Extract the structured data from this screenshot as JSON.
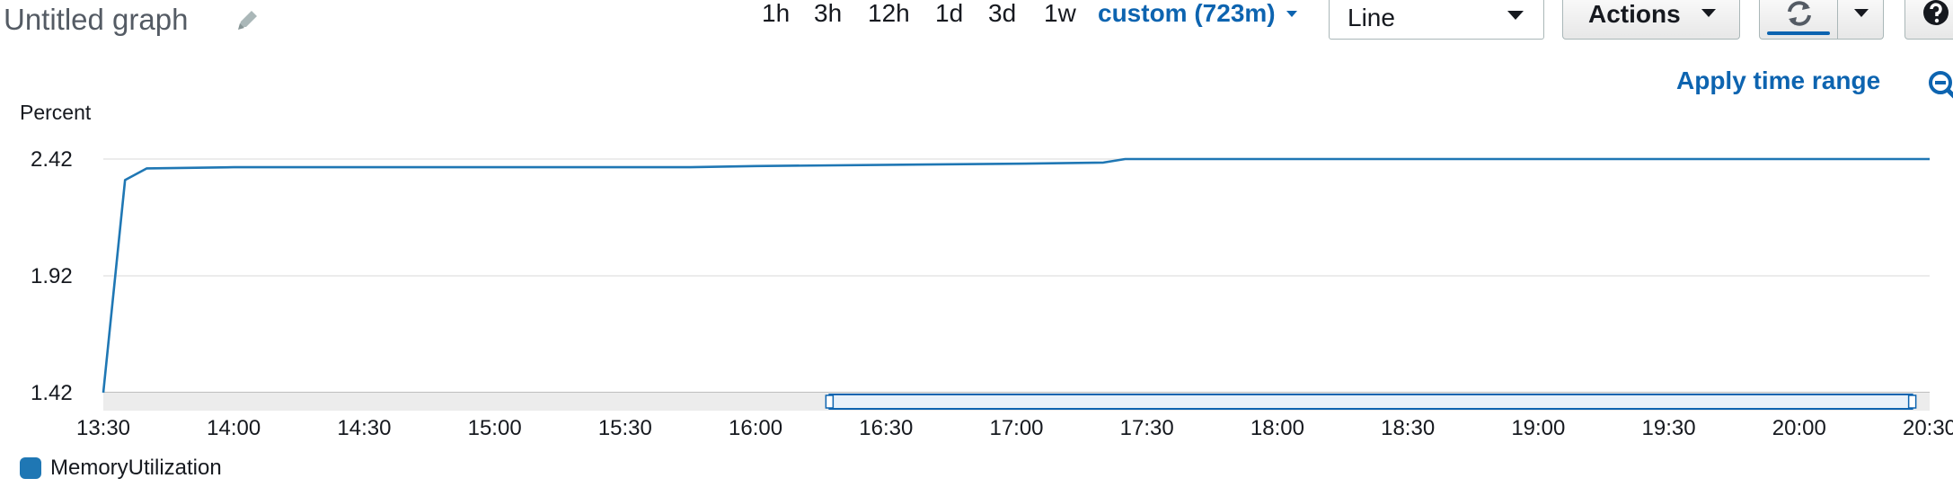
{
  "header": {
    "title": "Untitled graph",
    "time_ranges": [
      "1h",
      "3h",
      "12h",
      "1d",
      "3d",
      "1w"
    ],
    "custom_range_label": "custom (723m)",
    "view_select_value": "Line",
    "actions_label": "Actions",
    "apply_time_range_label": "Apply time range"
  },
  "colors": {
    "accent": "#0d64b0",
    "series": "#1f77b4",
    "grid": "#e6e6e6"
  },
  "icons": [
    "pencil-icon",
    "caret-down-icon",
    "refresh-icon",
    "help-icon",
    "zoom-out-icon"
  ],
  "chart_data": {
    "type": "line",
    "ylabel": "Percent",
    "y_ticks": [
      "1.42",
      "1.92",
      "2.42"
    ],
    "ylim": [
      1.42,
      2.42
    ],
    "x_ticks": [
      "13:30",
      "14:00",
      "14:30",
      "15:00",
      "15:30",
      "16:00",
      "16:30",
      "17:00",
      "17:30",
      "18:00",
      "18:30",
      "19:00",
      "19:30",
      "20:00",
      "20:30"
    ],
    "x_range": [
      "13:30",
      "20:30"
    ],
    "grid": true,
    "legend_position": "bottom-left",
    "series": [
      {
        "name": "MemoryUtilization",
        "color": "#1f77b4",
        "points": [
          [
            "13:30",
            1.42
          ],
          [
            "13:35",
            2.33
          ],
          [
            "13:40",
            2.38
          ],
          [
            "14:00",
            2.385
          ],
          [
            "15:00",
            2.385
          ],
          [
            "15:30",
            2.385
          ],
          [
            "15:45",
            2.385
          ],
          [
            "16:00",
            2.39
          ],
          [
            "17:00",
            2.4
          ],
          [
            "17:20",
            2.405
          ],
          [
            "17:25",
            2.42
          ],
          [
            "18:00",
            2.42
          ],
          [
            "20:30",
            2.42
          ]
        ]
      }
    ],
    "selection_window": [
      "16:17",
      "20:26"
    ]
  }
}
